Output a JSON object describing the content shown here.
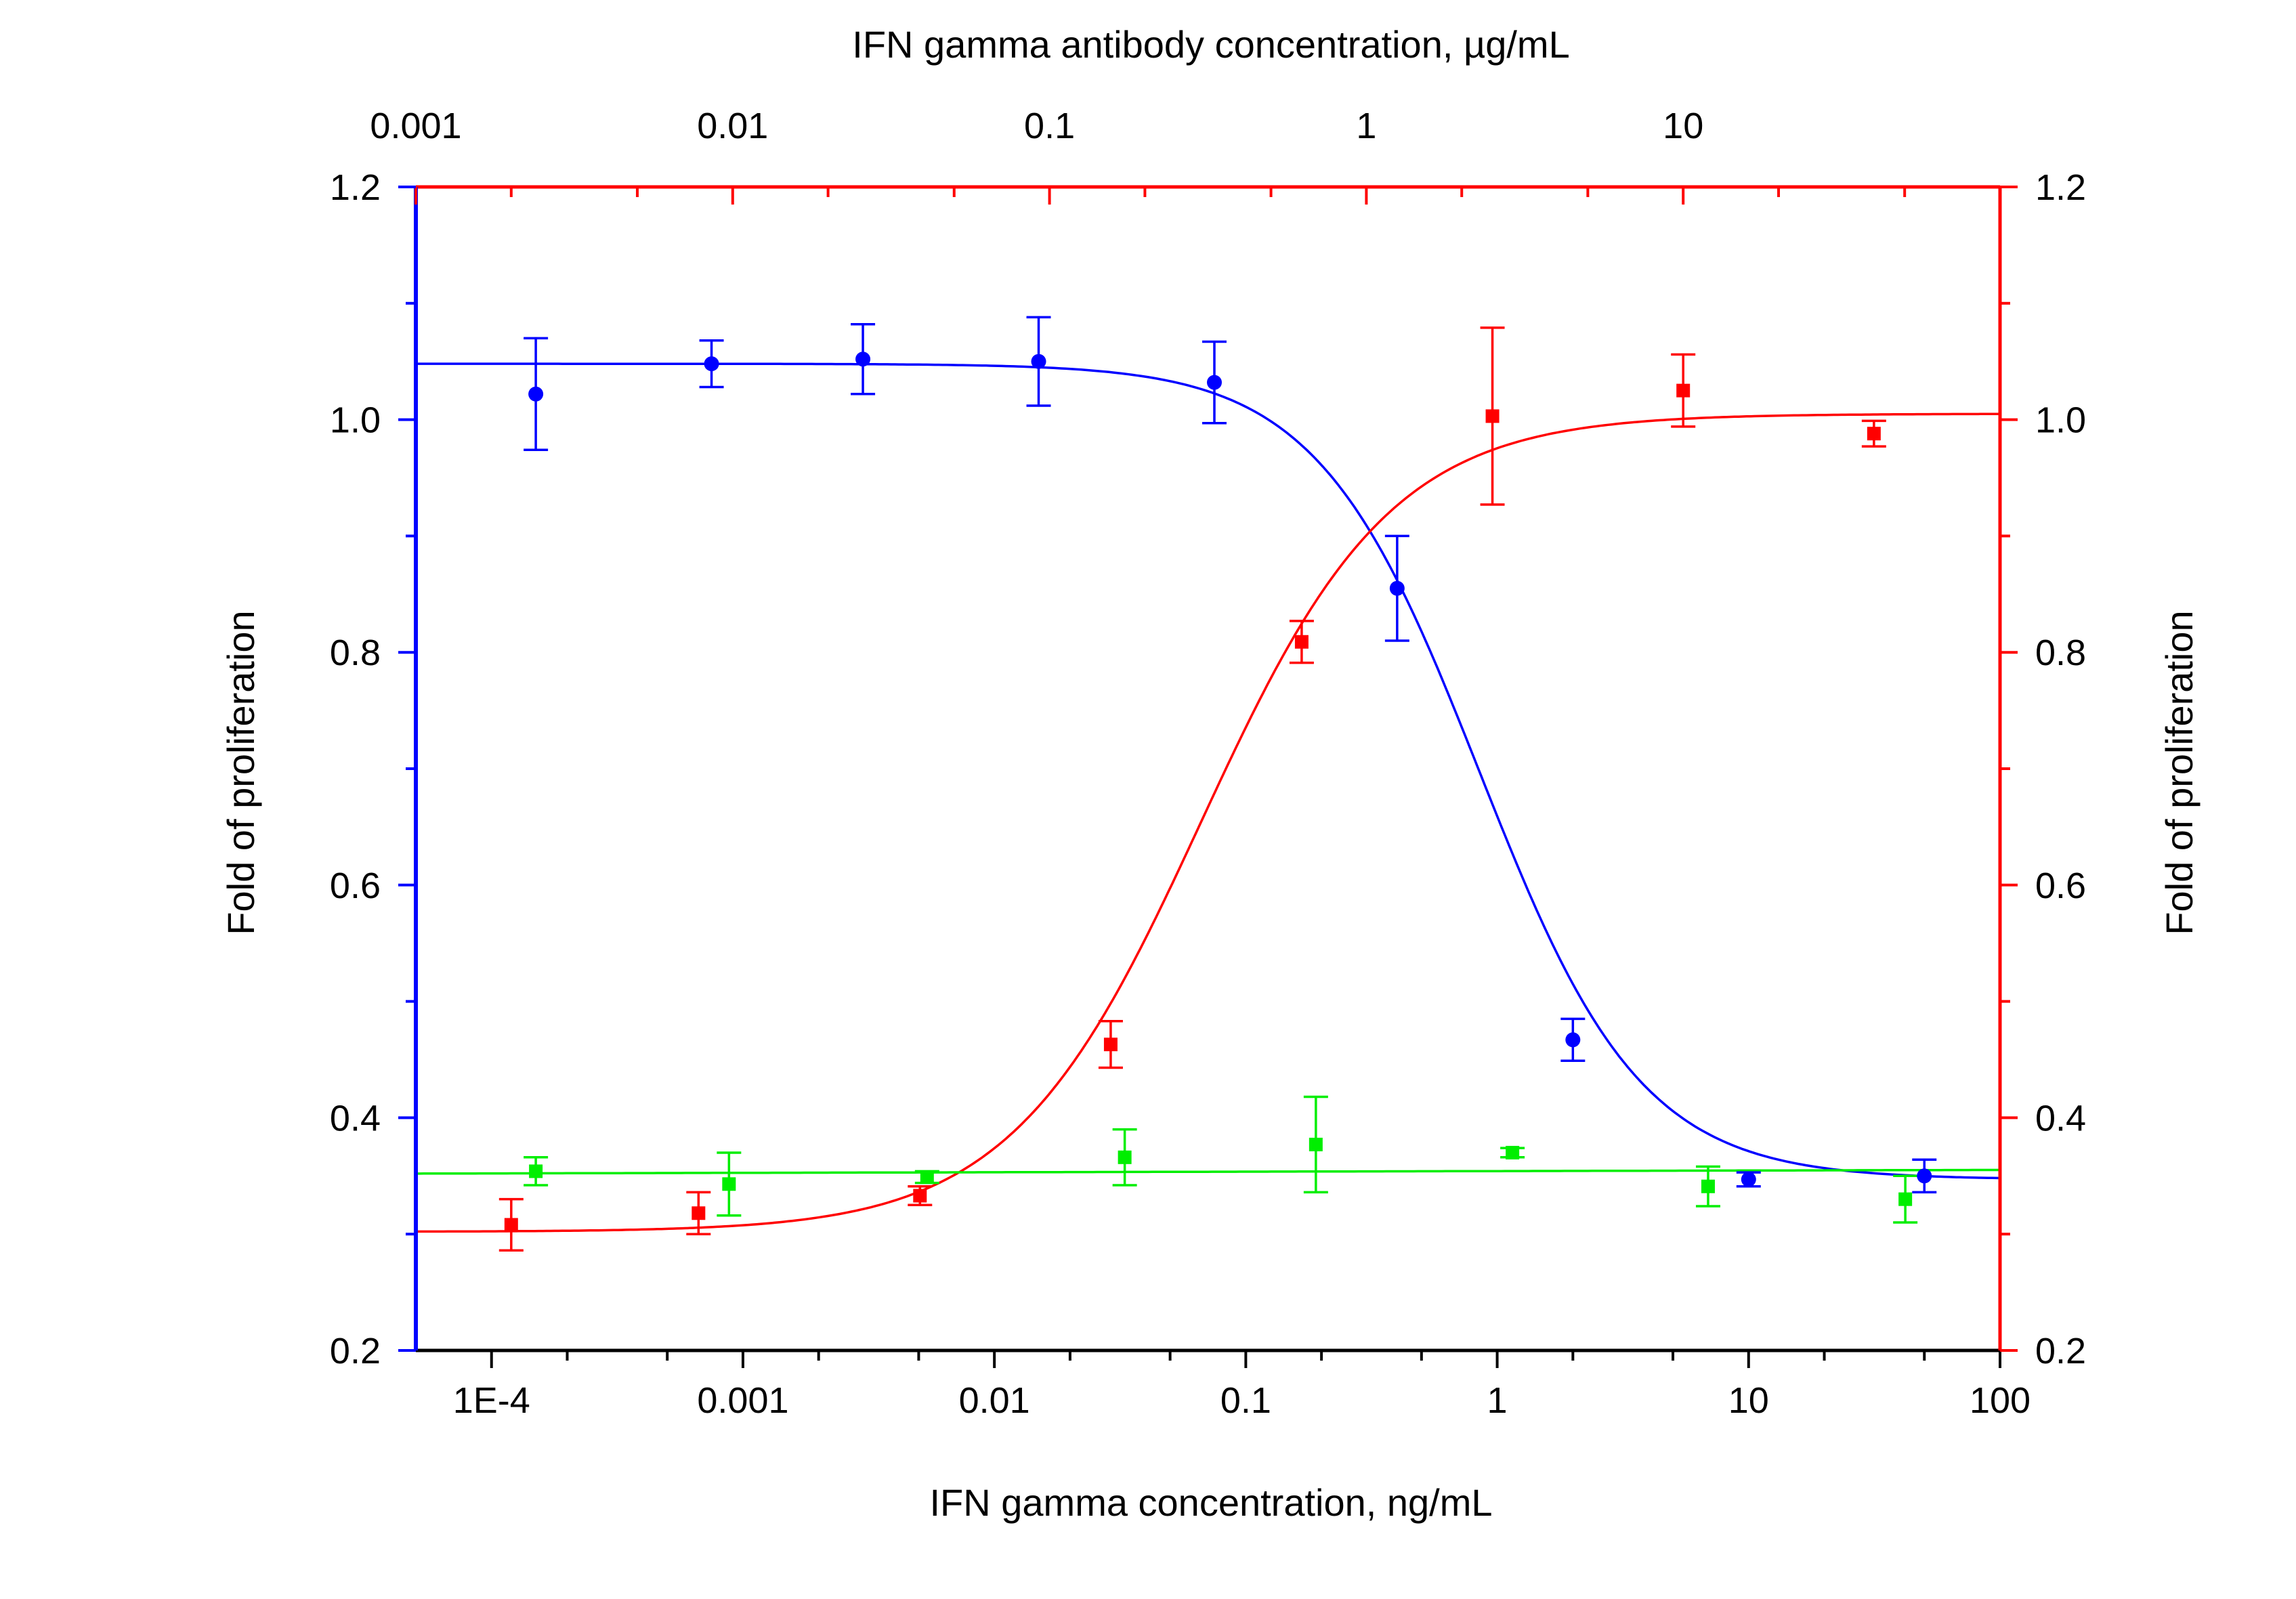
{
  "chart_data": {
    "type": "scatter",
    "title": "",
    "x_bottom": {
      "label": "IFN gamma concentration, ng/mL",
      "scale": "log",
      "range": [
        5e-05,
        100
      ],
      "ticks": [
        {
          "value": 0.0001,
          "label": "1E-4"
        },
        {
          "value": 0.001,
          "label": "0.001"
        },
        {
          "value": 0.01,
          "label": "0.01"
        },
        {
          "value": 0.1,
          "label": "0.1"
        },
        {
          "value": 1,
          "label": "1"
        },
        {
          "value": 10,
          "label": "10"
        },
        {
          "value": 100,
          "label": "100"
        }
      ]
    },
    "x_top": {
      "label": "IFN gamma antibody concentration, µg/mL",
      "scale": "log",
      "range": [
        0.001,
        100
      ],
      "ticks": [
        {
          "value": 0.001,
          "label": "0.001"
        },
        {
          "value": 0.01,
          "label": "0.01"
        },
        {
          "value": 0.1,
          "label": "0.1"
        },
        {
          "value": 1,
          "label": "1"
        },
        {
          "value": 10,
          "label": "10"
        }
      ]
    },
    "y_left": {
      "label": "Fold of proliferation",
      "range": [
        0.2,
        1.2
      ],
      "ticks": [
        {
          "value": 0.2,
          "label": "0.2"
        },
        {
          "value": 0.4,
          "label": "0.4"
        },
        {
          "value": 0.6,
          "label": "0.6"
        },
        {
          "value": 0.8,
          "label": "0.8"
        },
        {
          "value": 1.0,
          "label": "1.0"
        },
        {
          "value": 1.2,
          "label": "1.2"
        }
      ]
    },
    "y_right": {
      "label": "Fold of proliferation",
      "range": [
        0.2,
        1.2
      ],
      "ticks": [
        {
          "value": 0.2,
          "label": "0.2"
        },
        {
          "value": 0.4,
          "label": "0.4"
        },
        {
          "value": 0.6,
          "label": "0.6"
        },
        {
          "value": 0.8,
          "label": "0.8"
        },
        {
          "value": 1.0,
          "label": "1.0"
        },
        {
          "value": 1.2,
          "label": "1.2"
        }
      ]
    },
    "grid": false,
    "legend": "none",
    "series": [
      {
        "axis": "bottom-left",
        "marker": "circle",
        "color": "#0000ff",
        "x": [
          0.00015,
          0.00075,
          0.003,
          0.015,
          0.075,
          0.4,
          2,
          10,
          50
        ],
        "y": [
          1.022,
          1.048,
          1.052,
          1.05,
          1.032,
          0.855,
          0.467,
          0.347,
          0.35
        ],
        "error": [
          0.048,
          0.02,
          0.03,
          0.038,
          0.035,
          0.045,
          0.018,
          0.006,
          0.014
        ],
        "fit": {
          "top": 1.048,
          "bottom": 0.347,
          "ec50": 0.85,
          "hill": 1.35
        }
      },
      {
        "axis": "top-right",
        "marker": "square",
        "color": "#ff0000",
        "x": [
          0.002,
          0.0078,
          0.039,
          0.156,
          0.625,
          2.5,
          10,
          40
        ],
        "y": [
          0.308,
          0.318,
          0.333,
          0.463,
          0.809,
          1.003,
          1.025,
          0.988
        ],
        "error": [
          0.022,
          0.018,
          0.008,
          0.02,
          0.018,
          0.076,
          0.031,
          0.011
        ],
        "fit": {
          "top": 1.005,
          "bottom": 0.302,
          "ec50": 0.3,
          "hill": 1.45
        }
      },
      {
        "axis": "bottom-left",
        "marker": "square",
        "color": "#00ee00",
        "x": [
          0.00015,
          0.00088,
          0.0054,
          0.033,
          0.19,
          1.15,
          6.9,
          42
        ],
        "y": [
          0.354,
          0.343,
          0.349,
          0.366,
          0.377,
          0.37,
          0.341,
          0.33
        ],
        "error": [
          0.012,
          0.027,
          0.005,
          0.024,
          0.041,
          0.004,
          0.017,
          0.02
        ],
        "fit": {
          "intercept": 0.352,
          "slope_per_decade": 0.0005
        }
      }
    ]
  }
}
